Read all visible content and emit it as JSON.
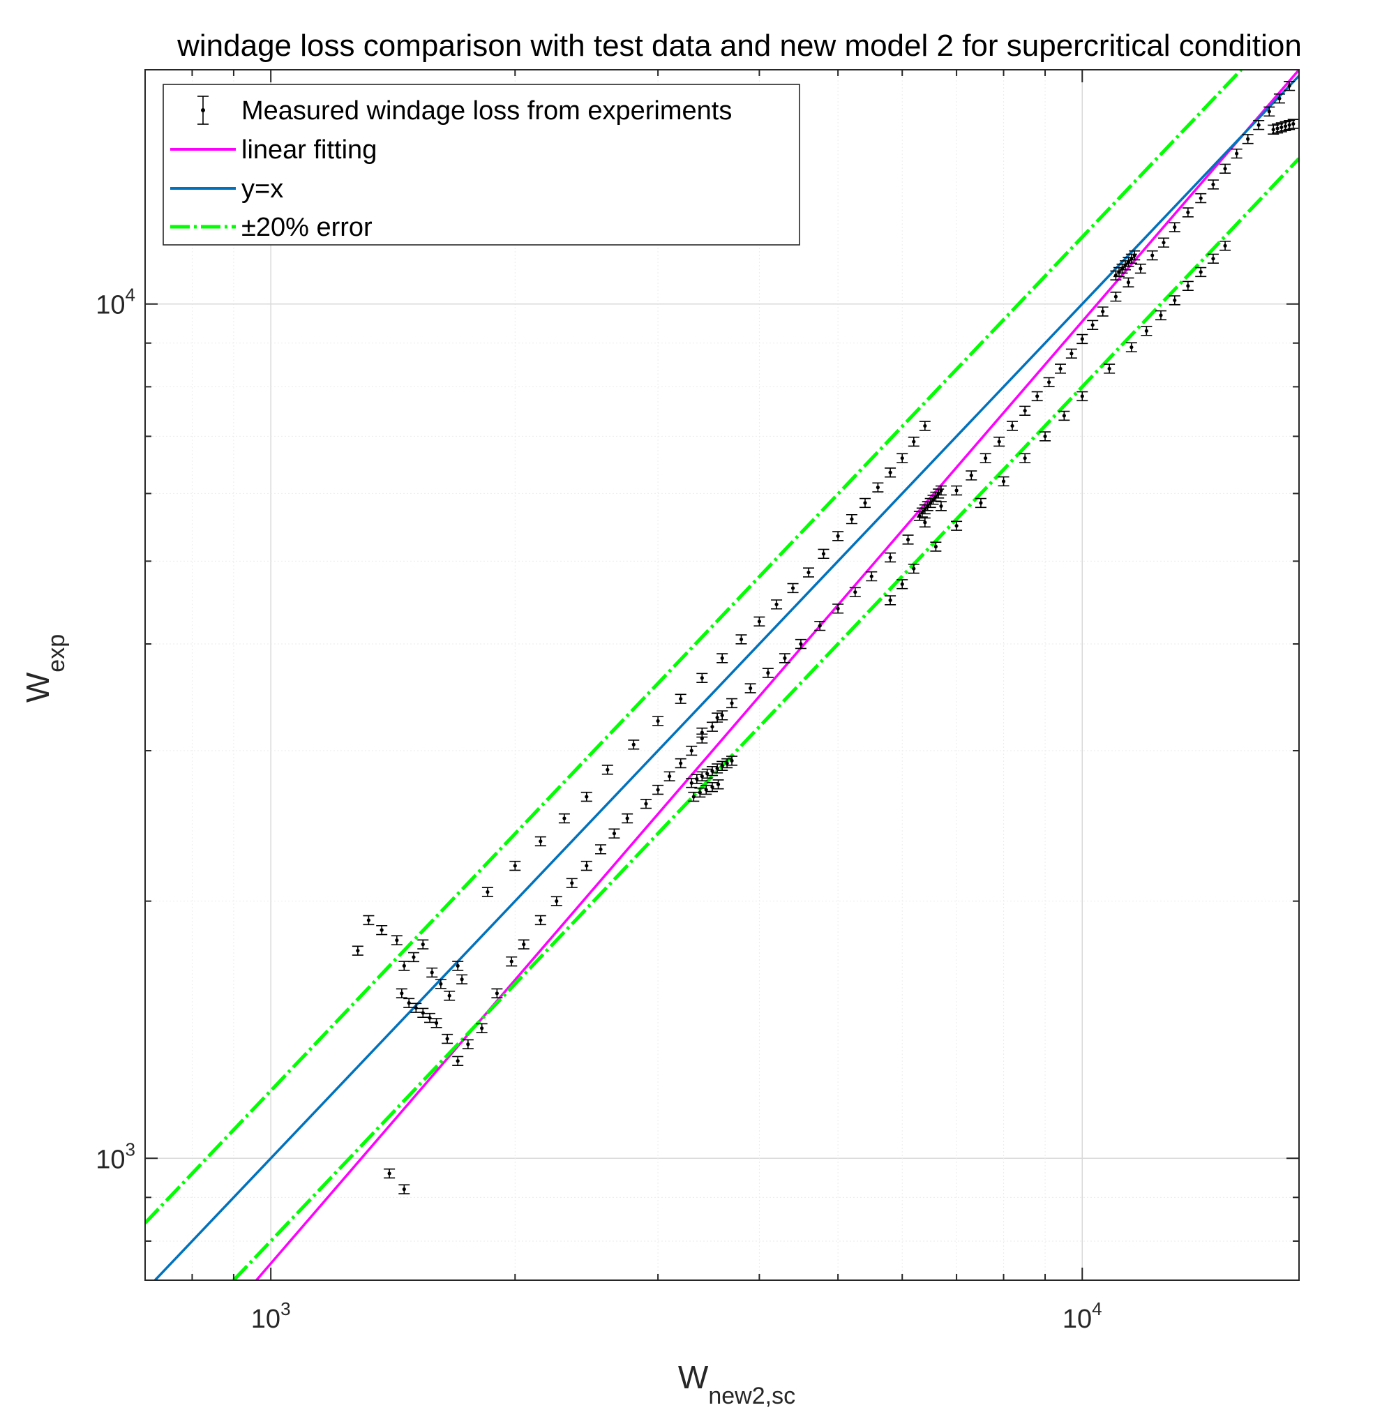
{
  "chart_data": {
    "type": "scatter",
    "title": "windage loss comparison with test data and new model 2 for supercritical condition",
    "xlabel": {
      "main": "W",
      "sub": "new2,sc"
    },
    "ylabel": {
      "main": "W",
      "sub": "exp"
    },
    "xscale": "log",
    "yscale": "log",
    "xlim": [
      700,
      18500
    ],
    "ylim": [
      720,
      18800
    ],
    "grid": true,
    "legend_position": "top-left",
    "x_ticks": [
      {
        "value": 1000,
        "base": "10",
        "exp": "3"
      },
      {
        "value": 10000,
        "base": "10",
        "exp": "4"
      }
    ],
    "y_ticks": [
      {
        "value": 1000,
        "base": "10",
        "exp": "3"
      },
      {
        "value": 10000,
        "base": "10",
        "exp": "4"
      }
    ],
    "legend": [
      {
        "label": "Measured windage loss from experiments",
        "style": "errorbar",
        "color": "#000000"
      },
      {
        "label": "linear fitting",
        "style": "line",
        "color": "#ff00ff"
      },
      {
        "label": "y=x",
        "style": "line",
        "color": "#0072bd"
      },
      {
        "label": "±20% error",
        "style": "dashdot",
        "color": "#00ff00"
      }
    ],
    "series": [
      {
        "name": "Measured windage loss from experiments",
        "type": "errorbar",
        "error_fraction": 0.012,
        "x": [
          1280,
          1320,
          1370,
          1430,
          1460,
          1500,
          1540,
          1580,
          1620,
          1660,
          1700,
          1720,
          1450,
          1480,
          1510,
          1540,
          1570,
          1600,
          1650,
          1700,
          1750,
          1820,
          1900,
          1980,
          2050,
          2150,
          2250,
          2350,
          2450,
          2550,
          2650,
          2750,
          2900,
          3000,
          3100,
          3200,
          3300,
          3400,
          3500,
          3600,
          1850,
          2000,
          2150,
          2300,
          2450,
          2600,
          2800,
          3000,
          3200,
          3400,
          3600,
          3800,
          4000,
          4200,
          4400,
          4600,
          4800,
          5000,
          5200,
          5400,
          5600,
          5800,
          6000,
          6200,
          6400,
          3400,
          3550,
          3700,
          3900,
          4100,
          4300,
          4500,
          4750,
          5000,
          5250,
          5500,
          5800,
          6100,
          6400,
          6700,
          7000,
          7300,
          7600,
          7900,
          8200,
          8500,
          8800,
          9100,
          9400,
          9700,
          10000,
          10300,
          10600,
          11000,
          11400,
          11800,
          12200,
          12600,
          13000,
          13500,
          14000,
          14500,
          15000,
          15500,
          16000,
          16500,
          17000,
          17500,
          18000,
          3300,
          3350,
          3400,
          3450,
          3500,
          3550,
          3600,
          3650,
          3700,
          3320,
          3380,
          3440,
          3500,
          3560,
          6300,
          6350,
          6400,
          6450,
          6500,
          6550,
          6600,
          6650,
          6700,
          11000,
          11100,
          11200,
          11300,
          11400,
          11500,
          11600,
          17200,
          17400,
          17600,
          17800,
          18000,
          18200,
          5800,
          6000,
          6200,
          6600,
          7000,
          7500,
          8000,
          8500,
          9000,
          9500,
          10000,
          10800,
          11500,
          12000,
          12500,
          13000,
          13500,
          14000,
          14500,
          15000,
          1400,
          1460
        ],
        "y": [
          1750,
          1900,
          1850,
          1800,
          1680,
          1720,
          1780,
          1650,
          1600,
          1550,
          1680,
          1620,
          1560,
          1520,
          1500,
          1480,
          1460,
          1440,
          1380,
          1300,
          1360,
          1420,
          1560,
          1700,
          1780,
          1900,
          2000,
          2100,
          2200,
          2300,
          2400,
          2500,
          2600,
          2700,
          2800,
          2900,
          3000,
          3100,
          3200,
          3300,
          2050,
          2200,
          2350,
          2500,
          2650,
          2850,
          3050,
          3250,
          3450,
          3650,
          3850,
          4050,
          4250,
          4450,
          4650,
          4850,
          5100,
          5350,
          5600,
          5850,
          6100,
          6350,
          6600,
          6900,
          7200,
          3150,
          3280,
          3410,
          3550,
          3700,
          3850,
          4000,
          4200,
          4400,
          4600,
          4800,
          5050,
          5300,
          5550,
          5800,
          6050,
          6300,
          6600,
          6900,
          7200,
          7500,
          7800,
          8100,
          8400,
          8750,
          9100,
          9450,
          9800,
          10200,
          10600,
          11000,
          11400,
          11800,
          12300,
          12800,
          13300,
          13800,
          14400,
          15000,
          15600,
          16200,
          16800,
          17400,
          18000,
          2750,
          2780,
          2800,
          2820,
          2840,
          2860,
          2880,
          2900,
          2920,
          2650,
          2680,
          2700,
          2720,
          2740,
          5650,
          5700,
          5750,
          5800,
          5850,
          5900,
          5950,
          6000,
          6050,
          10800,
          10900,
          11000,
          11100,
          11200,
          11300,
          11400,
          16000,
          16050,
          16100,
          16150,
          16200,
          16250,
          4500,
          4700,
          4900,
          5200,
          5500,
          5850,
          6200,
          6600,
          7000,
          7400,
          7800,
          8400,
          8900,
          9300,
          9700,
          10100,
          10500,
          10900,
          11300,
          11700,
          960,
          920
        ]
      },
      {
        "name": "linear fitting",
        "type": "line",
        "x": [
          960,
          18500
        ],
        "y": [
          720,
          18800
        ]
      },
      {
        "name": "y=x",
        "type": "line",
        "x": [
          720,
          18500
        ],
        "y": [
          720,
          18500
        ]
      },
      {
        "name": "±20% error",
        "type": "dashdot",
        "x": [
          700,
          15700
        ],
        "y": [
          840,
          18800
        ]
      },
      {
        "name": "±20% error",
        "type": "dashdot",
        "x": [
          900,
          18500
        ],
        "y": [
          720,
          14800
        ]
      }
    ]
  }
}
